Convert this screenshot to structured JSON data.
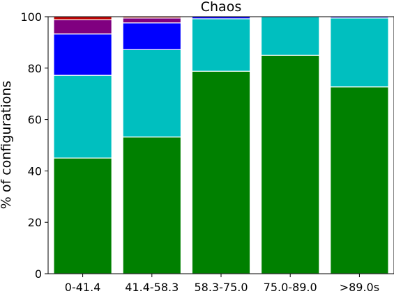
{
  "chart_data": {
    "type": "bar",
    "stacked": true,
    "title": "Chaos",
    "xlabel": "",
    "ylabel": "% of configurations",
    "categories": [
      "0-41.4",
      "41.4-58.3",
      "58.3-75.0",
      "75.0-89.0",
      ">89.0s"
    ],
    "ylim": [
      0,
      100
    ],
    "yticks": [
      0,
      20,
      40,
      60,
      80,
      100
    ],
    "grid": false,
    "legend": "none",
    "series": [
      {
        "color": "#008000",
        "values": [
          45,
          53.2,
          78.8,
          85,
          72.7
        ]
      },
      {
        "color": "#00BFBF",
        "values": [
          32.2,
          34,
          20.4,
          15,
          26.8
        ]
      },
      {
        "color": "#0000FF",
        "values": [
          16.1,
          10.4,
          0.8,
          0,
          0.5
        ]
      },
      {
        "color": "#800080",
        "values": [
          5.5,
          1.9,
          0,
          0,
          0
        ]
      },
      {
        "color": "#BF0000",
        "values": [
          1.2,
          0.5,
          0,
          0,
          0
        ]
      }
    ]
  }
}
